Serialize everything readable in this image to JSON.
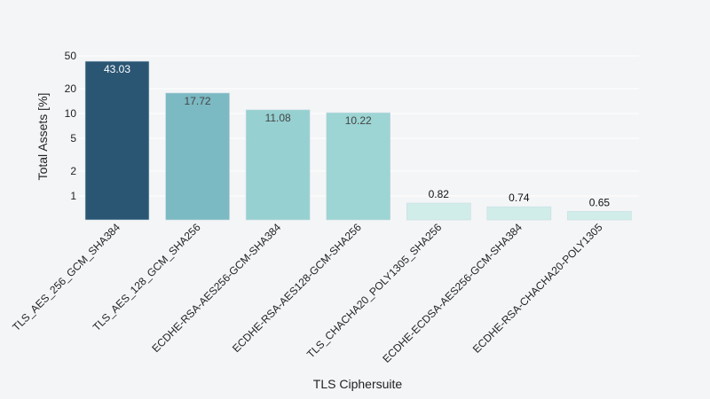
{
  "chart_data": {
    "type": "bar",
    "title": "",
    "xlabel": "TLS Ciphersuite",
    "ylabel": "Total Assets [%]",
    "yscale": "log",
    "ylim": [
      0.51,
      60
    ],
    "yticks": [
      1,
      2,
      5,
      10,
      20,
      50
    ],
    "ytick_labels": [
      "1",
      "2",
      "5",
      "10",
      "20",
      "50"
    ],
    "grid": true,
    "legend": null,
    "categories": [
      "TLS_AES_256_GCM_SHA384",
      "TLS_AES_128_GCM_SHA256",
      "ECDHE-RSA-AES256-GCM-SHA384",
      "ECDHE-RSA-AES128-GCM-SHA256",
      "TLS_CHACHA20_POLY1305_SHA256",
      "ECDHE-ECDSA-AES256-GCM-SHA384",
      "ECDHE-RSA-CHACHA20-POLY1305"
    ],
    "values": [
      43.03,
      17.72,
      11.08,
      10.22,
      0.82,
      0.74,
      0.65
    ],
    "value_labels": [
      "43.03",
      "17.72",
      "11.08",
      "10.22",
      "0.82",
      "0.74",
      "0.65"
    ],
    "colors": [
      "#2a5674",
      "#7bb9c3",
      "#96d0d1",
      "#9dd4d4",
      "#d1ede9",
      "#d1ede9",
      "#d1ede9"
    ],
    "label_colors": [
      "#ffffff",
      "#444444",
      "#444444",
      "#444444",
      "#111111",
      "#111111",
      "#111111"
    ],
    "label_inside": [
      true,
      true,
      true,
      true,
      false,
      false,
      false
    ]
  },
  "colors": {
    "background": "#f4f5f7",
    "grid": "#ffffff"
  }
}
